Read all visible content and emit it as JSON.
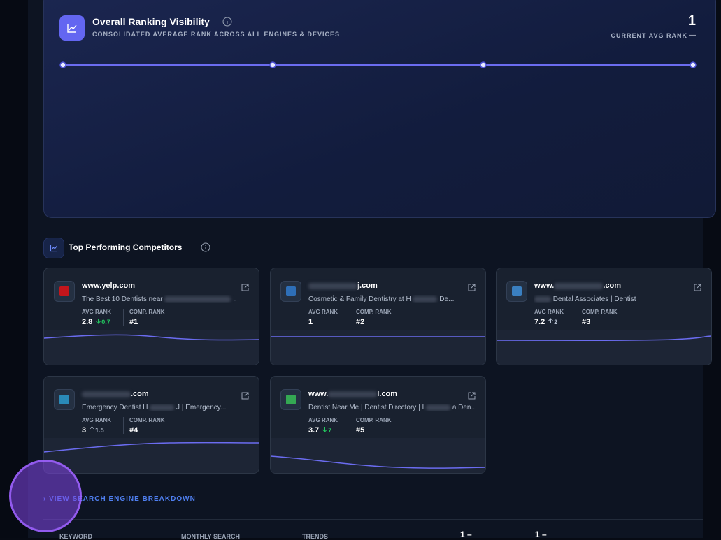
{
  "header": {
    "title": "Overall Ranking Visibility",
    "subtitle": "CONSOLIDATED AVERAGE RANK ACROSS ALL ENGINES & DEVICES",
    "rank_value": "1",
    "rank_label": "CURRENT AVG RANK",
    "rank_change": "—"
  },
  "competitors": {
    "title": "Top Performing Competitors",
    "avg_rank_label": "AVG RANK",
    "comp_rank_label": "COMP. RANK",
    "cards": [
      {
        "domain": "www.yelp.com",
        "description": "The Best 10 Dentists near",
        "description_end": "..",
        "avg_rank": "2.8",
        "change": "0.7",
        "comp_rank": "#1"
      },
      {
        "domain": "j.com",
        "description": "Cosmetic & Family Dentistry at H",
        "description_end": "De...",
        "avg_rank": "1",
        "comp_rank": "#2"
      },
      {
        "domain": "www.",
        "domain_end": ".com",
        "description": "Dental Associates | Dentist",
        "avg_rank": "7.2",
        "change": "2",
        "comp_rank": "#3"
      },
      {
        "domain": ".com",
        "description": "Emergency Dentist H",
        "description_end": "J | Emergency...",
        "avg_rank": "3",
        "change": "1.5",
        "comp_rank": "#4"
      },
      {
        "domain": "www.",
        "domain_end": "l.com",
        "description": "Dentist Near Me | Dentist Directory | I",
        "description_end": "a Den...",
        "avg_rank": "3.7",
        "change": "7",
        "comp_rank": "#5"
      }
    ]
  },
  "breakdown_link": "VIEW SEARCH ENGINE BREAKDOWN",
  "table": {
    "headers": [
      "KEYWORD",
      "MONTHLY SEARCH",
      "TRENDS",
      "1 –",
      "1 –"
    ]
  }
}
